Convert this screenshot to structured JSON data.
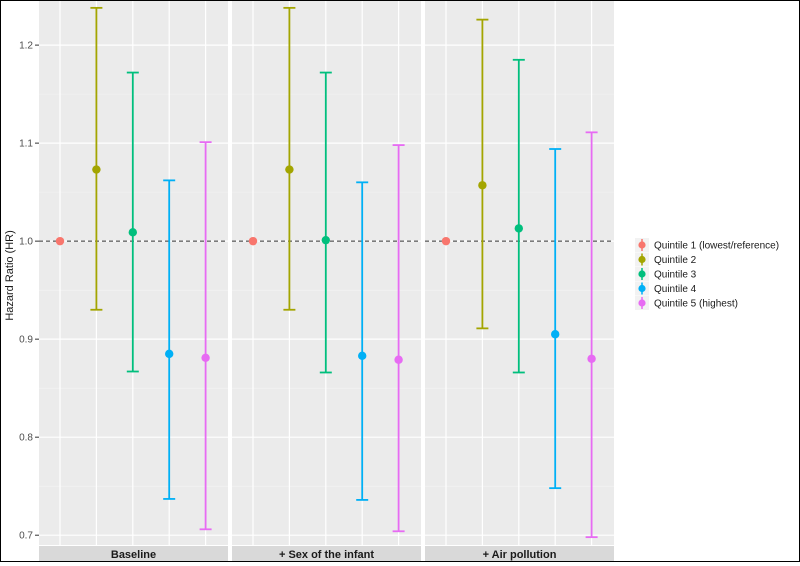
{
  "chart_data": {
    "type": "errorbar",
    "ylabel": "Hazard Ratio (HR)",
    "ylim": [
      0.69,
      1.245
    ],
    "yticks": [
      0.7,
      0.8,
      0.9,
      1.0,
      1.1,
      1.2
    ],
    "ytick_labels": [
      "0.7",
      "0.8",
      "0.9",
      "1.0",
      "1.1",
      "1.2"
    ],
    "reference_line": 1.0,
    "legend_position": "right",
    "series": [
      {
        "name": "Quintile 1 (lowest/reference)",
        "color": "#F8766D"
      },
      {
        "name": "Quintile 2",
        "color": "#A3A500"
      },
      {
        "name": "Quintile 3",
        "color": "#00BF7D"
      },
      {
        "name": "Quintile 4",
        "color": "#00B0F6"
      },
      {
        "name": "Quintile 5 (highest)",
        "color": "#E76BF3"
      }
    ],
    "panels": [
      {
        "label": "Baseline",
        "points": [
          {
            "series": "Quintile 1 (lowest/reference)",
            "hr": 1.0,
            "lower": 1.0,
            "upper": 1.0
          },
          {
            "series": "Quintile 2",
            "hr": 1.073,
            "lower": 0.93,
            "upper": 1.238
          },
          {
            "series": "Quintile 3",
            "hr": 1.009,
            "lower": 0.867,
            "upper": 1.172
          },
          {
            "series": "Quintile 4",
            "hr": 0.885,
            "lower": 0.737,
            "upper": 1.062
          },
          {
            "series": "Quintile 5 (highest)",
            "hr": 0.881,
            "lower": 0.706,
            "upper": 1.101
          }
        ]
      },
      {
        "label": "+ Sex of the infant",
        "points": [
          {
            "series": "Quintile 1 (lowest/reference)",
            "hr": 1.0,
            "lower": 1.0,
            "upper": 1.0
          },
          {
            "series": "Quintile 2",
            "hr": 1.073,
            "lower": 0.93,
            "upper": 1.238
          },
          {
            "series": "Quintile 3",
            "hr": 1.001,
            "lower": 0.866,
            "upper": 1.172
          },
          {
            "series": "Quintile 4",
            "hr": 0.883,
            "lower": 0.736,
            "upper": 1.06
          },
          {
            "series": "Quintile 5 (highest)",
            "hr": 0.879,
            "lower": 0.704,
            "upper": 1.098
          }
        ]
      },
      {
        "label": "+ Air pollution",
        "points": [
          {
            "series": "Quintile 1 (lowest/reference)",
            "hr": 1.0,
            "lower": 1.0,
            "upper": 1.0
          },
          {
            "series": "Quintile 2",
            "hr": 1.057,
            "lower": 0.911,
            "upper": 1.226
          },
          {
            "series": "Quintile 3",
            "hr": 1.013,
            "lower": 0.866,
            "upper": 1.185
          },
          {
            "series": "Quintile 4",
            "hr": 0.905,
            "lower": 0.748,
            "upper": 1.094
          },
          {
            "series": "Quintile 5 (highest)",
            "hr": 0.88,
            "lower": 0.698,
            "upper": 1.111
          }
        ]
      }
    ]
  }
}
